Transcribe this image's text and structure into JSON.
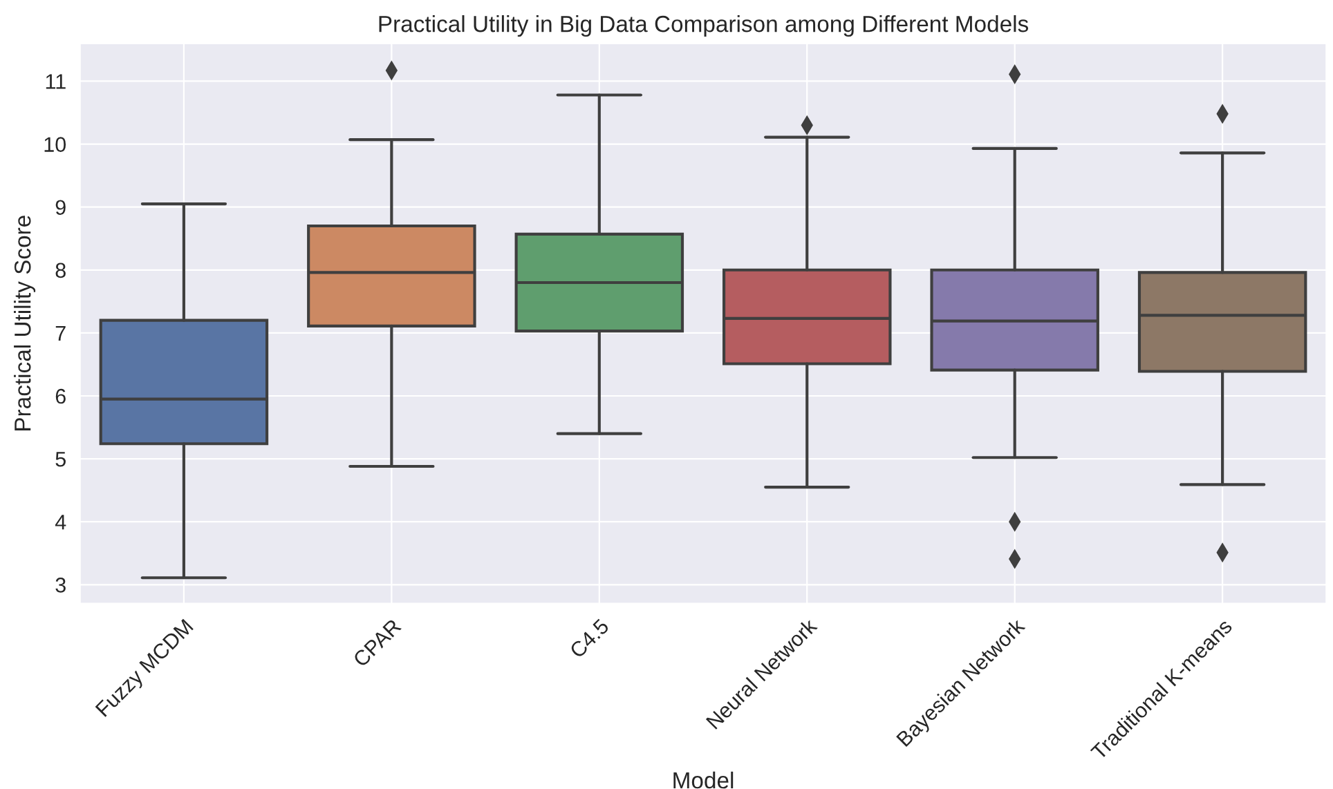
{
  "chart_data": {
    "type": "box",
    "title": "Practical Utility in Big Data Comparison among Different Models",
    "xlabel": "Model",
    "ylabel": "Practical Utility Score",
    "categories": [
      "Fuzzy MCDM",
      "CPAR",
      "C4.5",
      "Neural Network",
      "Bayesian Network",
      "Traditional K-means"
    ],
    "colors": [
      "#5975a4",
      "#cc8963",
      "#5f9e6e",
      "#b55d60",
      "#857aab",
      "#8d7866"
    ],
    "boxes": [
      {
        "low": 3.11,
        "q1": 5.24,
        "median": 5.95,
        "q3": 7.2,
        "high": 9.05
      },
      {
        "low": 4.88,
        "q1": 7.11,
        "median": 7.96,
        "q3": 8.7,
        "high": 10.07,
        "outliers": [
          11.17
        ]
      },
      {
        "low": 5.4,
        "q1": 7.03,
        "median": 7.8,
        "q3": 8.57,
        "high": 10.78
      },
      {
        "low": 4.55,
        "q1": 6.51,
        "median": 7.23,
        "q3": 8.0,
        "high": 10.11,
        "outliers": [
          10.3
        ]
      },
      {
        "low": 5.02,
        "q1": 6.41,
        "median": 7.19,
        "q3": 8.0,
        "high": 9.93,
        "outliers": [
          11.11,
          4.0,
          3.41
        ]
      },
      {
        "low": 4.59,
        "q1": 6.39,
        "median": 7.28,
        "q3": 7.96,
        "high": 9.86,
        "outliers": [
          10.48,
          3.51
        ]
      }
    ],
    "ylim": [
      2.7,
      11.6
    ],
    "yticks": [
      3,
      4,
      5,
      6,
      7,
      8,
      9,
      10,
      11
    ],
    "grid": true,
    "marker": "diamond"
  }
}
